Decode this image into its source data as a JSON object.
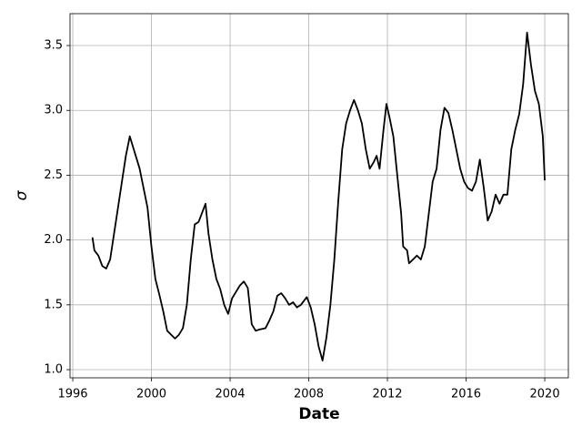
{
  "chart_data": {
    "type": "line",
    "xlabel": "Date",
    "ylabel": "σ",
    "color": "#000000",
    "grid": true,
    "x": [
      1997.0,
      1997.1,
      1997.3,
      1997.5,
      1997.7,
      1997.9,
      1998.1,
      1998.3,
      1998.5,
      1998.7,
      1998.9,
      1999.0,
      1999.2,
      1999.4,
      1999.6,
      1999.8,
      2000.0,
      2000.2,
      2000.4,
      2000.6,
      2000.8,
      2001.0,
      2001.2,
      2001.4,
      2001.6,
      2001.8,
      2002.0,
      2002.2,
      2002.4,
      2002.6,
      2002.75,
      2002.9,
      2003.1,
      2003.3,
      2003.5,
      2003.7,
      2003.9,
      2004.1,
      2004.3,
      2004.5,
      2004.7,
      2004.9,
      2005.1,
      2005.3,
      2005.5,
      2005.8,
      2006.0,
      2006.2,
      2006.4,
      2006.6,
      2006.8,
      2007.0,
      2007.2,
      2007.4,
      2007.6,
      2007.9,
      2008.1,
      2008.3,
      2008.5,
      2008.7,
      2008.9,
      2009.1,
      2009.3,
      2009.5,
      2009.7,
      2009.9,
      2010.1,
      2010.3,
      2010.5,
      2010.7,
      2010.9,
      2011.1,
      2011.3,
      2011.45,
      2011.6,
      2011.8,
      2011.95,
      2012.1,
      2012.3,
      2012.5,
      2012.7,
      2012.8,
      2013.0,
      2013.1,
      2013.3,
      2013.5,
      2013.7,
      2013.9,
      2014.1,
      2014.3,
      2014.5,
      2014.7,
      2014.9,
      2015.1,
      2015.3,
      2015.5,
      2015.7,
      2015.9,
      2016.1,
      2016.3,
      2016.5,
      2016.7,
      2016.9,
      2017.1,
      2017.3,
      2017.5,
      2017.7,
      2017.9,
      2018.1,
      2018.3,
      2018.5,
      2018.7,
      2018.9,
      2019.1,
      2019.3,
      2019.5,
      2019.7,
      2019.9,
      2020.0
    ],
    "values": [
      2.02,
      1.92,
      1.88,
      1.8,
      1.78,
      1.85,
      2.05,
      2.25,
      2.45,
      2.65,
      2.8,
      2.75,
      2.65,
      2.55,
      2.4,
      2.25,
      1.95,
      1.7,
      1.58,
      1.45,
      1.3,
      1.27,
      1.24,
      1.27,
      1.32,
      1.5,
      1.85,
      2.12,
      2.14,
      2.22,
      2.28,
      2.05,
      1.85,
      1.7,
      1.62,
      1.5,
      1.43,
      1.55,
      1.6,
      1.65,
      1.68,
      1.63,
      1.35,
      1.3,
      1.31,
      1.32,
      1.38,
      1.45,
      1.57,
      1.59,
      1.55,
      1.5,
      1.52,
      1.48,
      1.5,
      1.56,
      1.48,
      1.35,
      1.18,
      1.07,
      1.25,
      1.5,
      1.85,
      2.3,
      2.7,
      2.9,
      3.0,
      3.08,
      3.0,
      2.9,
      2.7,
      2.55,
      2.6,
      2.65,
      2.55,
      2.85,
      3.05,
      2.95,
      2.8,
      2.5,
      2.2,
      1.95,
      1.92,
      1.82,
      1.85,
      1.88,
      1.85,
      1.95,
      2.2,
      2.45,
      2.55,
      2.85,
      3.02,
      2.98,
      2.85,
      2.7,
      2.55,
      2.45,
      2.4,
      2.38,
      2.45,
      2.62,
      2.4,
      2.15,
      2.22,
      2.35,
      2.28,
      2.35,
      2.35,
      2.7,
      2.85,
      2.97,
      3.2,
      3.6,
      3.35,
      3.15,
      3.05,
      2.8,
      2.46
    ],
    "xlim": [
      1995.86,
      2021.2
    ],
    "xticks": [
      1996,
      2000,
      2004,
      2008,
      2012,
      2016,
      2020
    ],
    "ylim": [
      0.937,
      3.746
    ],
    "yticks": [
      {
        "value": 1,
        "label": "1.0"
      },
      1.5,
      {
        "value": 2,
        "label": "2.0"
      },
      2.5,
      {
        "value": 3,
        "label": "3.0"
      },
      3.5
    ]
  }
}
